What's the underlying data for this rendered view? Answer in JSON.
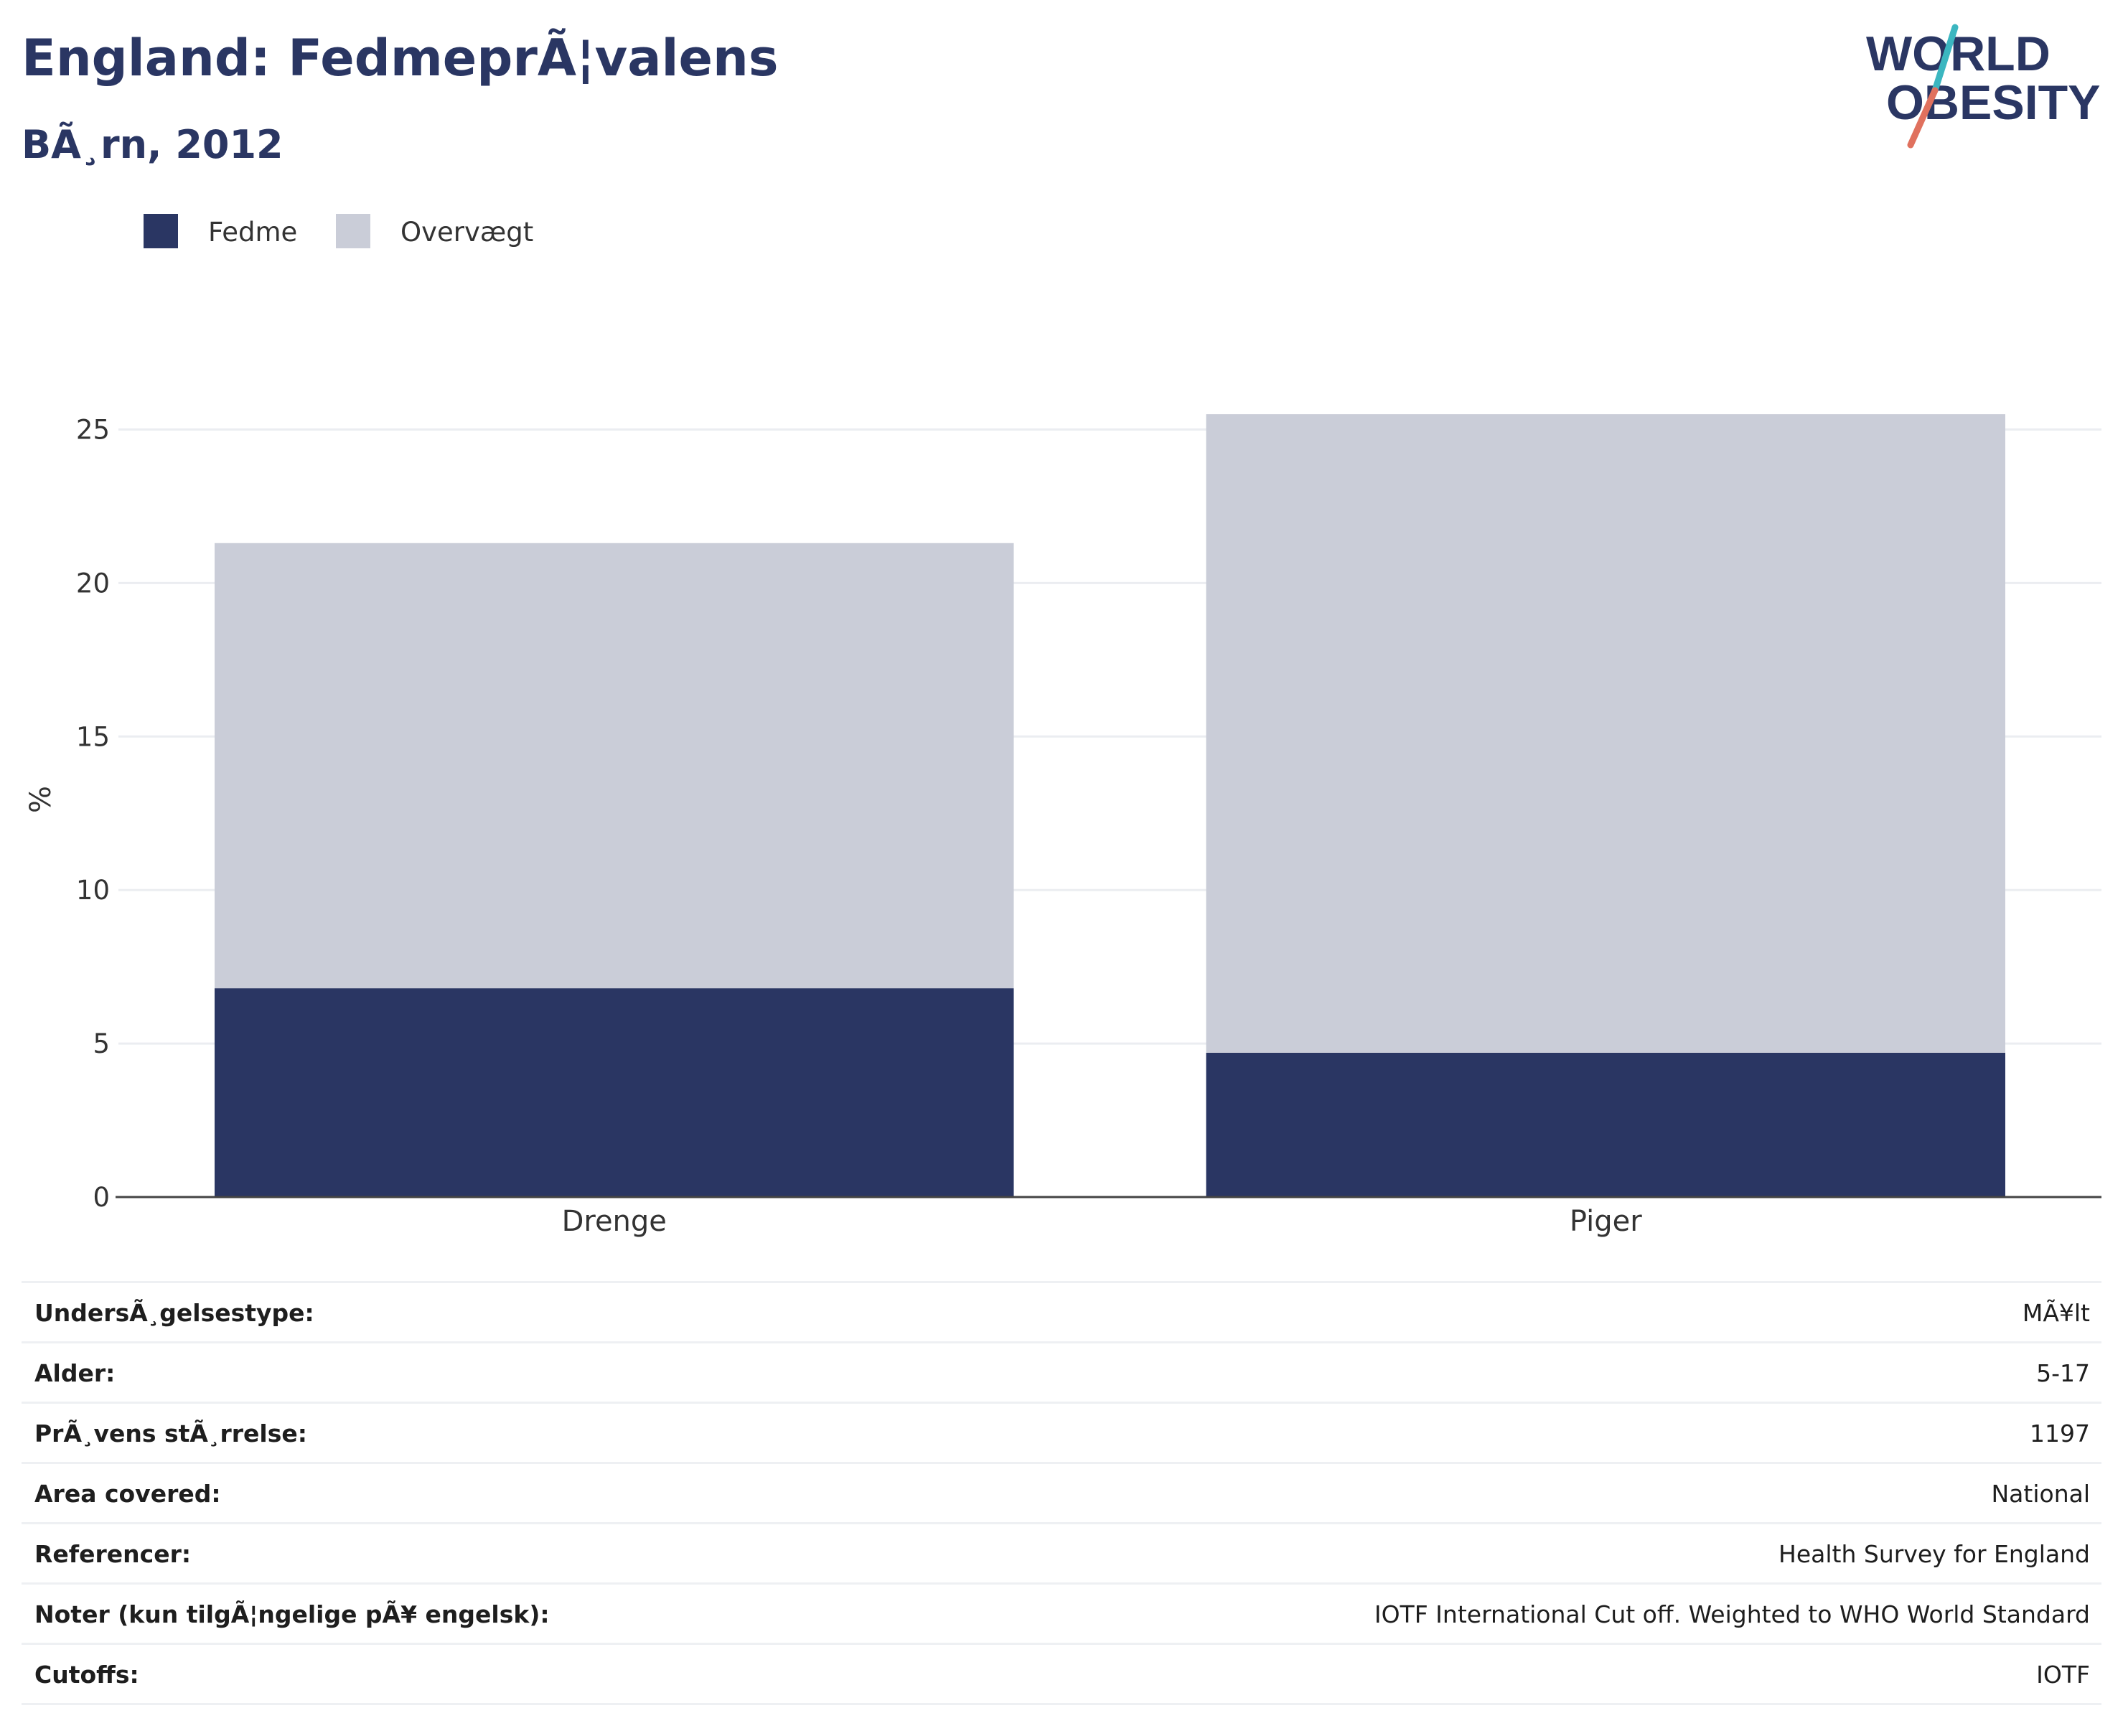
{
  "header": {
    "title": "England: FedmeprÃ¦valens",
    "subtitle": "BÃ¸rn, 2012"
  },
  "logo": {
    "line1": "WORLD",
    "line2": "OBESITY",
    "text_color": "#2a3663",
    "slash_top_color": "#3bb6c0",
    "slash_bottom_color": "#e0715e"
  },
  "legend": [
    {
      "label": "Fedme",
      "color": "#2a3663"
    },
    {
      "label": "Overvægt",
      "color": "#cacdd8"
    }
  ],
  "chart_data": {
    "type": "bar",
    "stacked": true,
    "categories": [
      "Drenge",
      "Piger"
    ],
    "series": [
      {
        "name": "Fedme",
        "values": [
          6.8,
          4.7
        ],
        "color": "#2a3663"
      },
      {
        "name": "Overvægt",
        "values": [
          14.5,
          20.8
        ],
        "color": "#cacdd8"
      }
    ],
    "ylabel": "%",
    "ylim": [
      0,
      25.9
    ],
    "yticks": [
      0,
      5,
      10,
      15,
      20,
      25
    ],
    "grid": true,
    "legend_position": "top-left"
  },
  "meta_rows": [
    {
      "label": "UndersÃ¸gelsestype:",
      "value": "MÃ¥lt"
    },
    {
      "label": "Alder:",
      "value": "5-17"
    },
    {
      "label": "PrÃ¸vens stÃ¸rrelse:",
      "value": "1197"
    },
    {
      "label": "Area covered:",
      "value": "National"
    },
    {
      "label": "Referencer:",
      "value": "Health Survey for England"
    },
    {
      "label": "Noter (kun tilgÃ¦ngelige pÃ¥ engelsk):",
      "value": "IOTF International Cut off. Weighted to WHO World Standard"
    },
    {
      "label": "Cutoffs:",
      "value": "IOTF"
    }
  ]
}
